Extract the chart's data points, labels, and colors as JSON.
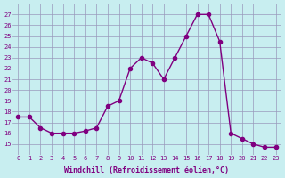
{
  "x": [
    0,
    1,
    2,
    3,
    4,
    5,
    6,
    7,
    8,
    9,
    10,
    11,
    12,
    13,
    14,
    15,
    16,
    17,
    18,
    19,
    20,
    21,
    22,
    23
  ],
  "y": [
    17.5,
    17.5,
    16.5,
    16.0,
    16.0,
    16.0,
    16.2,
    16.5,
    18.5,
    19.0,
    22.0,
    23.0,
    22.5,
    21.0,
    23.0,
    25.0,
    27.0,
    27.0,
    24.5,
    16.0,
    15.5,
    15.0,
    14.7,
    14.7
  ],
  "line_color": "#800080",
  "marker": "o",
  "marker_size": 3,
  "bg_color": "#c8eef0",
  "xlabel": "Windchill (Refroidissement éolien,°C)",
  "ylim": [
    14,
    28
  ],
  "xlim_min": -0.5,
  "xlim_max": 23.5,
  "yticks": [
    15,
    16,
    17,
    18,
    19,
    20,
    21,
    22,
    23,
    24,
    25,
    26,
    27
  ],
  "xticks": [
    0,
    1,
    2,
    3,
    4,
    5,
    6,
    7,
    8,
    9,
    10,
    11,
    12,
    13,
    14,
    15,
    16,
    17,
    18,
    19,
    20,
    21,
    22,
    23
  ]
}
